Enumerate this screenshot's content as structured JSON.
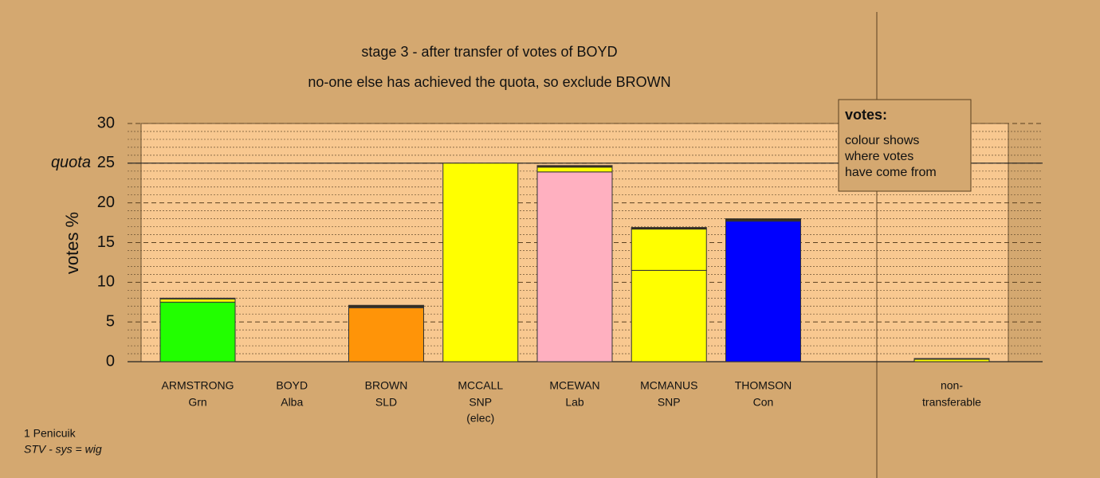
{
  "chart_data": {
    "type": "bar",
    "stacked": true,
    "title": "stage 3 - after transfer of votes of BOYD",
    "subtitle": "no-one else has achieved the quota, so exclude BROWN",
    "y_label": "votes %",
    "categories": [
      "ARMSTRONG",
      "BOYD",
      "BROWN",
      "MCCALL",
      "MCEWAN",
      "MCMANUS",
      "THOMSON",
      null,
      "non-"
    ],
    "parties": [
      "Grn",
      "Alba",
      "SLD",
      "SNP",
      "Lab",
      "SNP",
      "Con",
      null,
      "transferable"
    ],
    "notes": [
      null,
      null,
      null,
      "(elec)",
      null,
      null,
      null,
      null,
      null
    ],
    "series": [
      {
        "colors": [
          "#22ff00",
          "#3a2a10",
          "#ff9408",
          "#ffff00",
          "#ffb0c0",
          "#ffff00",
          "#0000ff",
          null,
          "#ffff00"
        ],
        "values": [
          7.5,
          0,
          6.8,
          25,
          23.9,
          11.5,
          17.7,
          null,
          0
        ]
      },
      {
        "color": "#ffff00",
        "values": [
          0.4,
          0,
          0.1,
          0,
          0.6,
          5.2,
          0.1,
          null,
          0.3
        ]
      },
      {
        "color": "#3a2a10",
        "values": [
          0.1,
          0,
          0.2,
          0,
          0.2,
          0.2,
          0.2,
          null,
          0.1
        ]
      }
    ],
    "ylim": [
      0,
      30
    ],
    "yticks": [
      0,
      5,
      10,
      15,
      20,
      25,
      30
    ],
    "yminor": [
      1,
      2,
      3,
      4,
      6,
      7,
      8,
      9,
      11,
      12,
      13,
      14,
      16,
      17,
      18,
      19,
      21,
      22,
      23,
      24,
      26,
      27,
      28,
      29
    ],
    "quota": {
      "value": 25,
      "label": "quota"
    },
    "grid": true,
    "legend": {
      "title": "votes:",
      "lines": [
        "colour shows",
        "where votes",
        "have come from"
      ]
    },
    "footer": [
      "1 Penicuik",
      "STV - sys = wig"
    ]
  }
}
